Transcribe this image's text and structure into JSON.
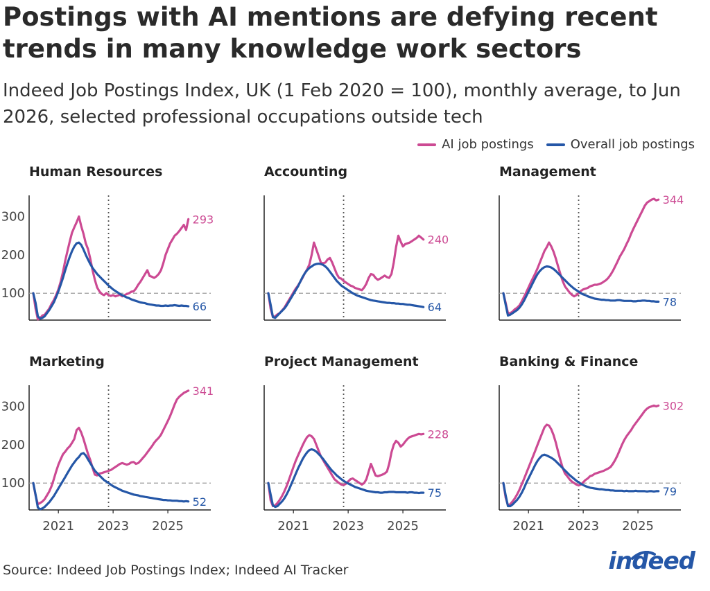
{
  "title": "Postings with AI mentions are defying recent trends in many knowledge work sectors",
  "subtitle": "Indeed Job Postings Index, UK (1 Feb 2020 = 100), monthly average, to Jun 2026, selected professional occupations outside tech",
  "source": "Source: Indeed Job Postings Index; Indeed AI Tracker",
  "logo_text": "indeed",
  "legend": [
    {
      "name": "AI job postings",
      "color": "#cc4a93"
    },
    {
      "name": "Overall job postings",
      "color": "#2557a7"
    }
  ],
  "colors": {
    "ai": "#cc4a93",
    "overall": "#2557a7",
    "grid": "#999999",
    "axis": "#222222"
  },
  "chart_data": [
    {
      "type": "line",
      "panel": "Human Resources",
      "x_start": "2020-02",
      "x_end": "2026-06",
      "xticks": [
        "2021",
        "2023",
        "2025"
      ],
      "ylim": [
        30,
        355
      ],
      "yticks": [
        100,
        200,
        300
      ],
      "reference_line_y": 100,
      "vertical_marker": "2022-11",
      "series": [
        {
          "name": "AI job postings",
          "end_label": "293",
          "values": [
            100,
            60,
            32,
            35,
            42,
            44,
            52,
            60,
            72,
            82,
            95,
            110,
            130,
            155,
            185,
            210,
            235,
            258,
            272,
            285,
            300,
            275,
            255,
            230,
            215,
            190,
            160,
            135,
            115,
            105,
            98,
            95,
            100,
            95,
            93,
            95,
            92,
            94,
            96,
            92,
            95,
            98,
            100,
            104,
            105,
            112,
            122,
            130,
            140,
            150,
            160,
            145,
            143,
            140,
            144,
            150,
            160,
            178,
            200,
            215,
            230,
            240,
            250,
            255,
            262,
            270,
            278,
            265,
            293
          ]
        },
        {
          "name": "Overall job postings",
          "end_label": "66",
          "values": [
            100,
            75,
            40,
            34,
            36,
            40,
            48,
            56,
            66,
            76,
            90,
            105,
            122,
            140,
            160,
            178,
            195,
            210,
            222,
            230,
            232,
            226,
            214,
            200,
            188,
            176,
            166,
            158,
            150,
            144,
            138,
            132,
            126,
            120,
            115,
            110,
            106,
            102,
            98,
            95,
            92,
            89,
            87,
            84,
            82,
            80,
            78,
            76,
            75,
            74,
            72,
            71,
            70,
            69,
            68,
            68,
            67,
            67,
            68,
            67,
            68,
            68,
            69,
            68,
            67,
            68,
            67,
            67,
            66
          ]
        }
      ]
    },
    {
      "type": "line",
      "panel": "Accounting",
      "x_start": "2020-02",
      "x_end": "2026-06",
      "xticks": [
        "2021",
        "2023",
        "2025"
      ],
      "ylim": [
        30,
        355
      ],
      "yticks": [
        100,
        200,
        300
      ],
      "reference_line_y": 100,
      "vertical_marker": "2022-11",
      "series": [
        {
          "name": "AI job postings",
          "end_label": "240",
          "values": [
            100,
            60,
            38,
            40,
            45,
            48,
            55,
            62,
            72,
            82,
            92,
            102,
            112,
            120,
            130,
            140,
            152,
            162,
            175,
            200,
            232,
            215,
            198,
            180,
            178,
            180,
            188,
            192,
            180,
            165,
            150,
            140,
            138,
            132,
            128,
            124,
            120,
            118,
            114,
            112,
            110,
            108,
            115,
            125,
            140,
            150,
            148,
            140,
            135,
            138,
            142,
            146,
            142,
            140,
            150,
            180,
            220,
            250,
            235,
            222,
            228,
            230,
            232,
            236,
            240,
            244,
            250,
            245,
            240
          ]
        },
        {
          "name": "Overall job postings",
          "end_label": "64",
          "values": [
            100,
            70,
            38,
            36,
            42,
            48,
            54,
            60,
            68,
            78,
            88,
            98,
            108,
            118,
            130,
            142,
            152,
            160,
            166,
            170,
            174,
            176,
            177,
            176,
            174,
            170,
            164,
            156,
            148,
            140,
            132,
            126,
            120,
            116,
            112,
            108,
            104,
            100,
            97,
            94,
            92,
            90,
            88,
            86,
            84,
            82,
            81,
            80,
            79,
            78,
            77,
            76,
            75,
            75,
            74,
            74,
            73,
            73,
            72,
            72,
            71,
            70,
            70,
            69,
            68,
            67,
            66,
            65,
            64
          ]
        }
      ]
    },
    {
      "type": "line",
      "panel": "Management",
      "x_start": "2020-02",
      "x_end": "2026-06",
      "xticks": [
        "2021",
        "2023",
        "2025"
      ],
      "ylim": [
        30,
        355
      ],
      "yticks": [
        100,
        200,
        300
      ],
      "reference_line_y": 100,
      "vertical_marker": "2022-11",
      "series": [
        {
          "name": "AI job postings",
          "end_label": "344",
          "values": [
            100,
            75,
            48,
            48,
            52,
            58,
            62,
            68,
            78,
            90,
            102,
            115,
            128,
            140,
            152,
            165,
            180,
            195,
            210,
            220,
            232,
            222,
            208,
            190,
            170,
            150,
            132,
            118,
            110,
            102,
            96,
            92,
            95,
            100,
            106,
            110,
            112,
            114,
            118,
            120,
            122,
            122,
            124,
            126,
            130,
            134,
            140,
            148,
            158,
            170,
            182,
            195,
            205,
            215,
            228,
            240,
            255,
            268,
            280,
            292,
            304,
            316,
            328,
            336,
            340,
            344,
            346,
            342,
            344
          ]
        },
        {
          "name": "Overall job postings",
          "end_label": "78",
          "values": [
            100,
            70,
            42,
            44,
            48,
            52,
            56,
            62,
            70,
            80,
            92,
            104,
            116,
            128,
            140,
            150,
            158,
            164,
            168,
            170,
            169,
            167,
            163,
            158,
            152,
            146,
            140,
            134,
            128,
            122,
            117,
            112,
            108,
            104,
            100,
            97,
            95,
            92,
            90,
            88,
            86,
            85,
            84,
            83,
            83,
            82,
            82,
            81,
            81,
            81,
            82,
            82,
            81,
            80,
            80,
            80,
            80,
            79,
            79,
            80,
            80,
            81,
            81,
            80,
            80,
            79,
            79,
            78,
            78
          ]
        }
      ]
    },
    {
      "type": "line",
      "panel": "Marketing",
      "x_start": "2020-02",
      "x_end": "2026-06",
      "xticks": [
        "2021",
        "2023",
        "2025"
      ],
      "ylim": [
        30,
        355
      ],
      "yticks": [
        100,
        200,
        300
      ],
      "reference_line_y": 100,
      "vertical_marker": "2022-11",
      "series": [
        {
          "name": "AI job postings",
          "end_label": "341",
          "values": [
            100,
            68,
            45,
            48,
            52,
            58,
            68,
            78,
            92,
            110,
            130,
            148,
            162,
            175,
            182,
            190,
            196,
            205,
            215,
            238,
            244,
            232,
            215,
            195,
            176,
            160,
            140,
            122,
            120,
            125,
            126,
            128,
            130,
            132,
            134,
            138,
            142,
            146,
            150,
            152,
            150,
            148,
            150,
            154,
            155,
            150,
            152,
            158,
            165,
            172,
            180,
            188,
            196,
            205,
            212,
            218,
            226,
            238,
            250,
            262,
            275,
            290,
            305,
            318,
            325,
            330,
            335,
            338,
            341
          ]
        },
        {
          "name": "Overall job postings",
          "end_label": "52",
          "values": [
            100,
            70,
            36,
            32,
            34,
            38,
            44,
            50,
            58,
            66,
            76,
            86,
            96,
            106,
            116,
            126,
            136,
            146,
            154,
            162,
            168,
            176,
            178,
            172,
            162,
            152,
            142,
            132,
            126,
            120,
            114,
            108,
            104,
            100,
            96,
            92,
            89,
            86,
            83,
            80,
            78,
            76,
            74,
            72,
            70,
            69,
            68,
            66,
            65,
            64,
            63,
            62,
            61,
            60,
            59,
            58,
            57,
            56,
            56,
            55,
            55,
            54,
            54,
            54,
            53,
            53,
            52,
            53,
            52
          ]
        }
      ]
    },
    {
      "type": "line",
      "panel": "Project Management",
      "x_start": "2020-02",
      "x_end": "2026-06",
      "xticks": [
        "2021",
        "2023",
        "2025"
      ],
      "ylim": [
        30,
        355
      ],
      "yticks": [
        100,
        200,
        300
      ],
      "reference_line_y": 100,
      "vertical_marker": "2022-11",
      "series": [
        {
          "name": "AI job postings",
          "end_label": "228",
          "values": [
            100,
            55,
            40,
            42,
            48,
            56,
            66,
            78,
            92,
            108,
            125,
            142,
            158,
            172,
            185,
            198,
            210,
            220,
            225,
            222,
            215,
            200,
            185,
            170,
            160,
            150,
            140,
            130,
            120,
            110,
            105,
            100,
            96,
            95,
            98,
            104,
            110,
            112,
            108,
            104,
            100,
            96,
            100,
            110,
            130,
            150,
            135,
            120,
            118,
            120,
            122,
            125,
            130,
            150,
            180,
            200,
            210,
            205,
            195,
            200,
            208,
            215,
            220,
            222,
            224,
            226,
            228,
            227,
            228
          ]
        },
        {
          "name": "Overall job postings",
          "end_label": "75",
          "values": [
            100,
            70,
            42,
            38,
            40,
            46,
            52,
            60,
            70,
            82,
            96,
            110,
            124,
            138,
            150,
            162,
            172,
            180,
            186,
            188,
            186,
            182,
            176,
            170,
            163,
            155,
            147,
            139,
            132,
            126,
            120,
            115,
            110,
            106,
            102,
            99,
            96,
            93,
            90,
            88,
            86,
            84,
            82,
            80,
            79,
            78,
            77,
            76,
            76,
            75,
            75,
            76,
            76,
            77,
            77,
            77,
            76,
            76,
            76,
            76,
            76,
            75,
            76,
            76,
            75,
            75,
            74,
            75,
            75
          ]
        }
      ]
    },
    {
      "type": "line",
      "panel": "Banking & Finance",
      "x_start": "2020-02",
      "x_end": "2026-06",
      "xticks": [
        "2021",
        "2023",
        "2025"
      ],
      "ylim": [
        30,
        355
      ],
      "yticks": [
        100,
        200,
        300
      ],
      "reference_line_y": 100,
      "vertical_marker": "2022-11",
      "series": [
        {
          "name": "AI job postings",
          "end_label": "302",
          "values": [
            100,
            62,
            42,
            45,
            52,
            60,
            70,
            82,
            96,
            110,
            125,
            140,
            155,
            170,
            185,
            200,
            215,
            230,
            245,
            252,
            250,
            240,
            225,
            205,
            182,
            160,
            140,
            125,
            118,
            110,
            104,
            100,
            96,
            94,
            96,
            102,
            108,
            112,
            118,
            120,
            124,
            126,
            128,
            130,
            132,
            135,
            138,
            142,
            150,
            160,
            172,
            186,
            200,
            212,
            222,
            230,
            238,
            248,
            256,
            264,
            272,
            280,
            288,
            294,
            298,
            300,
            302,
            300,
            302
          ]
        },
        {
          "name": "Overall job postings",
          "end_label": "79",
          "values": [
            100,
            68,
            40,
            40,
            44,
            50,
            56,
            64,
            74,
            86,
            100,
            112,
            124,
            136,
            148,
            158,
            166,
            172,
            174,
            172,
            169,
            166,
            162,
            157,
            151,
            145,
            139,
            133,
            127,
            121,
            116,
            111,
            106,
            102,
            98,
            95,
            92,
            90,
            88,
            87,
            86,
            85,
            84,
            84,
            83,
            82,
            82,
            81,
            81,
            80,
            80,
            80,
            80,
            79,
            80,
            79,
            79,
            79,
            80,
            79,
            79,
            79,
            79,
            78,
            79,
            79,
            78,
            79,
            79
          ]
        }
      ]
    }
  ]
}
